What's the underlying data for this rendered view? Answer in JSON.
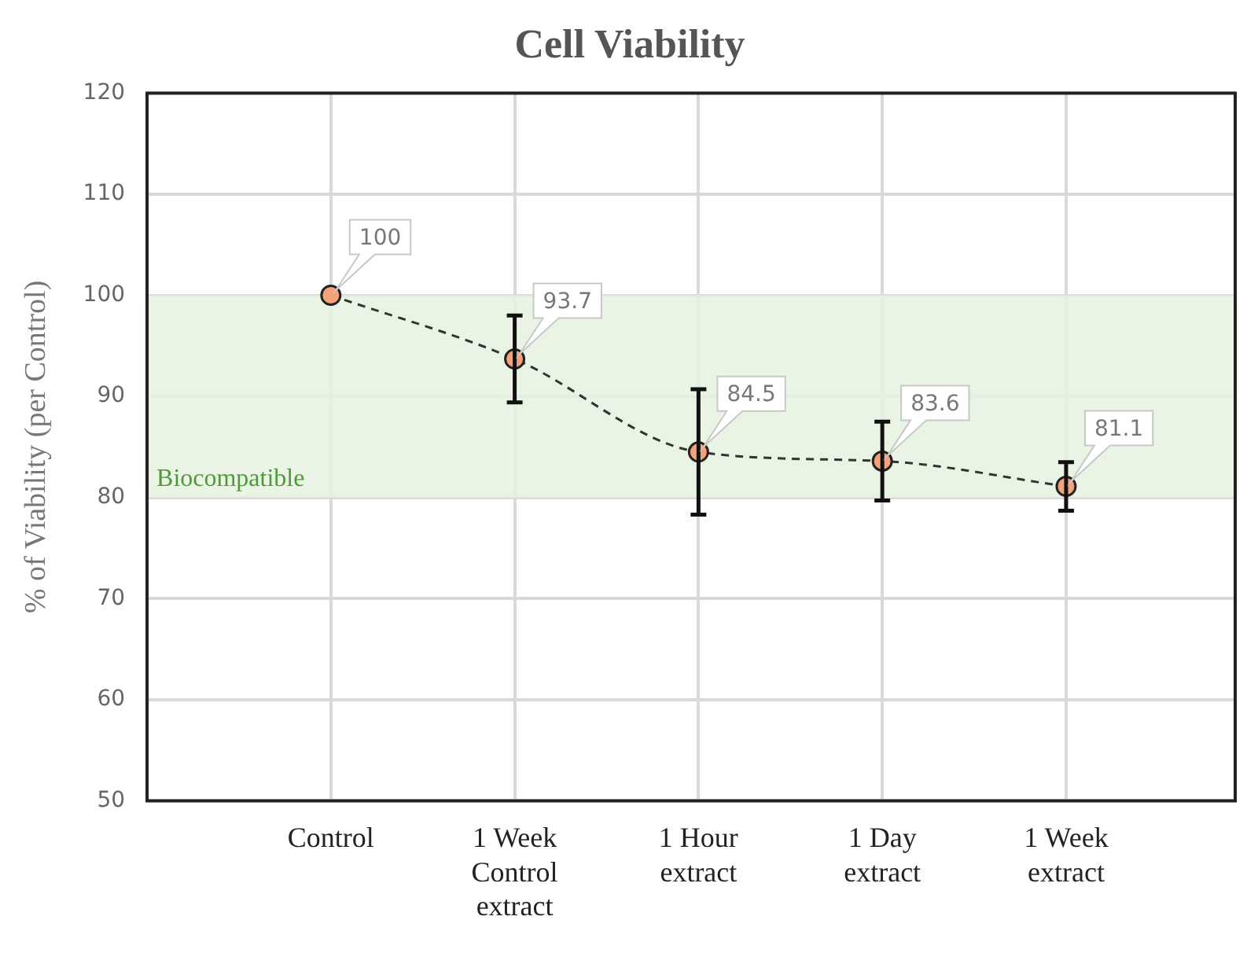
{
  "chart_data": {
    "type": "line",
    "title": "Cell Viability",
    "ylabel": "% of Viability (per Control)",
    "categories": [
      "Control",
      "1 Week Control extract",
      "1 Hour extract",
      "1 Day extract",
      "1 Week extract"
    ],
    "series": [
      {
        "color": "#f4a27a",
        "values": [
          100,
          93.7,
          84.5,
          83.6,
          81.1
        ],
        "errors": [
          null,
          4.3,
          6.2,
          3.9,
          2.4
        ]
      }
    ],
    "ylim": [
      50,
      120
    ],
    "yticks": [
      50,
      60,
      70,
      80,
      90,
      100,
      110,
      120
    ],
    "bands": [
      {
        "axis": "y",
        "from": 80,
        "to": 100,
        "label": "Biocompatible",
        "color": "#e6f2e0"
      }
    ],
    "data_labels": true,
    "grid": true,
    "legend": false,
    "marker": "circle",
    "line_style": "dashed"
  }
}
